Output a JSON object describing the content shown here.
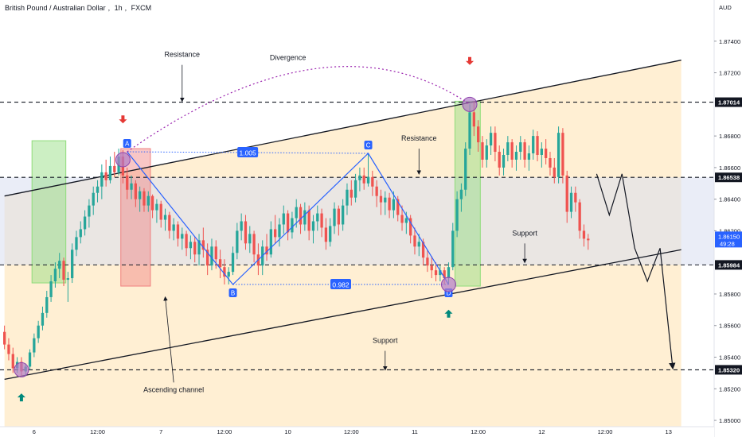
{
  "header": {
    "symbol_name": "British Pound / Australian Dollar",
    "interval": "1h",
    "exchange": "FXCM",
    "currency": "AUD"
  },
  "colors": {
    "up": "#26a69a",
    "down": "#ef5350",
    "channel_band": "#ffe9c4",
    "range_band": "#d8dff0",
    "green_box": "#8fdc7a",
    "red_box": "#f08080",
    "pattern_line": "#2962ff",
    "divergence": "#9c27b0",
    "arrow_down": "#e53935",
    "arrow_up": "#00897b",
    "axis_text": "#131722"
  },
  "chart_data": {
    "type": "candlestick",
    "title": "British Pound / Australian Dollar, 1h, FXCM",
    "ylim": [
      1.8496,
      1.8755
    ],
    "y_ticks": [
      "1.87400",
      "1.87200",
      "1.86800",
      "1.86600",
      "1.86400",
      "1.86200",
      "1.85800",
      "1.85600",
      "1.85400",
      "1.85200",
      "1.85000"
    ],
    "y_tick_values": [
      1.874,
      1.872,
      1.868,
      1.866,
      1.864,
      1.862,
      1.858,
      1.856,
      1.854,
      1.852,
      1.85
    ],
    "x_ticks": [
      "6",
      "12:00",
      "7",
      "12:00",
      "10",
      "12:00",
      "11",
      "12:00",
      "12",
      "12:00",
      "13"
    ],
    "x_tick_index": [
      7,
      22,
      37,
      52,
      67,
      82,
      97,
      112,
      127,
      142,
      157
    ],
    "bar_count": 160,
    "horizontal_levels": [
      {
        "price": 1.87014,
        "label": "1.87014",
        "style": "dashed"
      },
      {
        "price": 1.86538,
        "label": "1.86538",
        "style": "dashed"
      },
      {
        "price": 1.85984,
        "label": "1.85984",
        "style": "dashed"
      },
      {
        "price": 1.8532,
        "label": "1.85320",
        "style": "dashed"
      }
    ],
    "last_price": {
      "value": "1.86150",
      "countdown": "49:28"
    },
    "channel": {
      "upper": [
        [
          0,
          1.8642
        ],
        [
          160,
          1.8728
        ]
      ],
      "lower": [
        [
          0,
          1.8526
        ],
        [
          160,
          1.8608
        ]
      ]
    },
    "zones": [
      {
        "kind": "green",
        "x": [
          7,
          14
        ],
        "y": [
          1.8587,
          1.8677
        ]
      },
      {
        "kind": "red",
        "x": [
          28,
          34
        ],
        "y": [
          1.8585,
          1.8672
        ]
      },
      {
        "kind": "green",
        "x": [
          107,
          112
        ],
        "y": [
          1.8585,
          1.8702
        ]
      }
    ],
    "harmonic": {
      "points": [
        {
          "label": "A",
          "i": 29,
          "p": 1.867
        },
        {
          "label": "B",
          "i": 54,
          "p": 1.8586
        },
        {
          "label": "C",
          "i": 86,
          "p": 1.8669
        },
        {
          "label": "D",
          "i": 105,
          "p": 1.8586
        }
      ],
      "ratios": [
        {
          "label": "1.005",
          "from": "A",
          "to": "C"
        },
        {
          "label": "0.982",
          "from": "B",
          "to": "D"
        }
      ]
    },
    "projection": [
      [
        140,
        1.8656
      ],
      [
        143,
        1.863
      ],
      [
        146,
        1.8656
      ],
      [
        149,
        1.8609
      ],
      [
        152,
        1.8588
      ],
      [
        155,
        1.8609
      ],
      [
        158,
        1.8533
      ]
    ],
    "annotations": [
      {
        "text": "Resistance",
        "i": 42,
        "p": 1.873
      },
      {
        "text": "Divergence",
        "i": 67,
        "p": 1.8728
      },
      {
        "text": "Resistance",
        "i": 98,
        "p": 1.8677
      },
      {
        "text": "Support",
        "i": 123,
        "p": 1.8617
      },
      {
        "text": "Support",
        "i": 90,
        "p": 1.8549
      },
      {
        "text": "Ascending channel",
        "i": 40,
        "p": 1.8518
      }
    ],
    "candles_ohlc": [
      [
        1.8556,
        1.856,
        1.8545,
        1.8548
      ],
      [
        1.8548,
        1.8552,
        1.8538,
        1.8542
      ],
      [
        1.8542,
        1.8546,
        1.853,
        1.8533
      ],
      [
        1.8533,
        1.854,
        1.853,
        1.8537
      ],
      [
        1.8537,
        1.854,
        1.8528,
        1.8531
      ],
      [
        1.8531,
        1.8536,
        1.8528,
        1.8534
      ],
      [
        1.8534,
        1.8545,
        1.8532,
        1.8543
      ],
      [
        1.8543,
        1.8555,
        1.854,
        1.8552
      ],
      [
        1.8552,
        1.8563,
        1.8549,
        1.856
      ],
      [
        1.856,
        1.8572,
        1.8557,
        1.8568
      ],
      [
        1.8568,
        1.8582,
        1.8565,
        1.8578
      ],
      [
        1.8578,
        1.8592,
        1.8575,
        1.8588
      ],
      [
        1.8588,
        1.86,
        1.8584,
        1.8596
      ],
      [
        1.8596,
        1.8606,
        1.859,
        1.8601
      ],
      [
        1.8601,
        1.8603,
        1.8585,
        1.8589
      ],
      [
        1.8589,
        1.8594,
        1.8575,
        1.859
      ],
      [
        1.859,
        1.8612,
        1.8587,
        1.8608
      ],
      [
        1.8608,
        1.862,
        1.8604,
        1.8616
      ],
      [
        1.8616,
        1.8626,
        1.8612,
        1.8621
      ],
      [
        1.8621,
        1.8633,
        1.8617,
        1.8629
      ],
      [
        1.8629,
        1.864,
        1.8622,
        1.8636
      ],
      [
        1.8636,
        1.8648,
        1.863,
        1.8644
      ],
      [
        1.8644,
        1.8652,
        1.8638,
        1.8648
      ],
      [
        1.8648,
        1.8662,
        1.864,
        1.8657
      ],
      [
        1.8657,
        1.8665,
        1.8648,
        1.8652
      ],
      [
        1.8652,
        1.8667,
        1.865,
        1.8661
      ],
      [
        1.8661,
        1.867,
        1.8654,
        1.8657
      ],
      [
        1.8657,
        1.8672,
        1.8655,
        1.8667
      ],
      [
        1.8667,
        1.8671,
        1.865,
        1.8655
      ],
      [
        1.8655,
        1.866,
        1.864,
        1.8646
      ],
      [
        1.8646,
        1.8655,
        1.864,
        1.865
      ],
      [
        1.865,
        1.8652,
        1.8635,
        1.864
      ],
      [
        1.864,
        1.8648,
        1.8632,
        1.8645
      ],
      [
        1.8645,
        1.8647,
        1.8632,
        1.8636
      ],
      [
        1.8636,
        1.8645,
        1.8632,
        1.8642
      ],
      [
        1.8642,
        1.8643,
        1.8628,
        1.8633
      ],
      [
        1.8633,
        1.864,
        1.8625,
        1.8637
      ],
      [
        1.8637,
        1.8639,
        1.8622,
        1.8627
      ],
      [
        1.8627,
        1.8634,
        1.862,
        1.863
      ],
      [
        1.863,
        1.8632,
        1.8615,
        1.862
      ],
      [
        1.862,
        1.8628,
        1.8614,
        1.8624
      ],
      [
        1.8624,
        1.8626,
        1.861,
        1.8615
      ],
      [
        1.8615,
        1.8622,
        1.8608,
        1.8618
      ],
      [
        1.8618,
        1.862,
        1.8604,
        1.8609
      ],
      [
        1.8609,
        1.8617,
        1.8602,
        1.8613
      ],
      [
        1.8613,
        1.8616,
        1.86,
        1.8605
      ],
      [
        1.8605,
        1.8618,
        1.8598,
        1.8614
      ],
      [
        1.8614,
        1.8622,
        1.8603,
        1.8608
      ],
      [
        1.8608,
        1.8612,
        1.8592,
        1.8598
      ],
      [
        1.8598,
        1.8615,
        1.8595,
        1.861
      ],
      [
        1.861,
        1.8614,
        1.8596,
        1.8602
      ],
      [
        1.8602,
        1.8608,
        1.859,
        1.8597
      ],
      [
        1.8597,
        1.8602,
        1.8586,
        1.8591
      ],
      [
        1.8591,
        1.8597,
        1.8586,
        1.8594
      ],
      [
        1.8594,
        1.861,
        1.8592,
        1.8606
      ],
      [
        1.8606,
        1.8625,
        1.8602,
        1.862
      ],
      [
        1.862,
        1.8631,
        1.8614,
        1.8626
      ],
      [
        1.8626,
        1.863,
        1.8608,
        1.8612
      ],
      [
        1.8612,
        1.8623,
        1.8606,
        1.8618
      ],
      [
        1.8618,
        1.862,
        1.86,
        1.8605
      ],
      [
        1.8605,
        1.8612,
        1.8592,
        1.8598
      ],
      [
        1.8598,
        1.8614,
        1.8592,
        1.861
      ],
      [
        1.861,
        1.8618,
        1.8601,
        1.8605
      ],
      [
        1.8605,
        1.8626,
        1.8603,
        1.8621
      ],
      [
        1.8621,
        1.863,
        1.8612,
        1.8616
      ],
      [
        1.8616,
        1.8628,
        1.861,
        1.8624
      ],
      [
        1.8624,
        1.8636,
        1.8618,
        1.8631
      ],
      [
        1.8631,
        1.8633,
        1.8614,
        1.8619
      ],
      [
        1.8619,
        1.8632,
        1.8615,
        1.8628
      ],
      [
        1.8628,
        1.864,
        1.8622,
        1.8635
      ],
      [
        1.8635,
        1.8637,
        1.8618,
        1.8624
      ],
      [
        1.8624,
        1.8638,
        1.862,
        1.8633
      ],
      [
        1.8633,
        1.8636,
        1.8614,
        1.862
      ],
      [
        1.862,
        1.863,
        1.8612,
        1.8626
      ],
      [
        1.8626,
        1.8636,
        1.862,
        1.8631
      ],
      [
        1.8631,
        1.8634,
        1.8616,
        1.8622
      ],
      [
        1.8622,
        1.8628,
        1.8608,
        1.8613
      ],
      [
        1.8613,
        1.8628,
        1.861,
        1.8623
      ],
      [
        1.8623,
        1.8638,
        1.8618,
        1.8634
      ],
      [
        1.8634,
        1.8636,
        1.8617,
        1.8624
      ],
      [
        1.8624,
        1.864,
        1.862,
        1.8636
      ],
      [
        1.8636,
        1.865,
        1.863,
        1.8646
      ],
      [
        1.8646,
        1.8652,
        1.8636,
        1.8641
      ],
      [
        1.8641,
        1.8656,
        1.8638,
        1.8652
      ],
      [
        1.8652,
        1.866,
        1.8645,
        1.8655
      ],
      [
        1.8655,
        1.866,
        1.8646,
        1.865
      ],
      [
        1.865,
        1.8669,
        1.8648,
        1.8654
      ],
      [
        1.8654,
        1.8658,
        1.8642,
        1.8648
      ],
      [
        1.8648,
        1.8652,
        1.8635,
        1.8642
      ],
      [
        1.8642,
        1.8646,
        1.863,
        1.8638
      ],
      [
        1.8638,
        1.8645,
        1.863,
        1.8641
      ],
      [
        1.8641,
        1.8644,
        1.8628,
        1.8633
      ],
      [
        1.8633,
        1.8645,
        1.8628,
        1.864
      ],
      [
        1.864,
        1.8642,
        1.8626,
        1.863
      ],
      [
        1.863,
        1.8636,
        1.862,
        1.8625
      ],
      [
        1.8625,
        1.8632,
        1.8618,
        1.8628
      ],
      [
        1.8628,
        1.863,
        1.8612,
        1.8617
      ],
      [
        1.8617,
        1.8622,
        1.8605,
        1.861
      ],
      [
        1.861,
        1.8618,
        1.8604,
        1.8613
      ],
      [
        1.8613,
        1.8615,
        1.8598,
        1.8603
      ],
      [
        1.8603,
        1.8608,
        1.8594,
        1.8598
      ],
      [
        1.8598,
        1.8604,
        1.859,
        1.8595
      ],
      [
        1.8595,
        1.86,
        1.8588,
        1.8592
      ],
      [
        1.8592,
        1.8598,
        1.8588,
        1.8595
      ],
      [
        1.8595,
        1.8597,
        1.8586,
        1.859
      ],
      [
        1.859,
        1.86,
        1.8586,
        1.8597
      ],
      [
        1.8597,
        1.8625,
        1.8595,
        1.862
      ],
      [
        1.862,
        1.8645,
        1.8616,
        1.864
      ],
      [
        1.864,
        1.865,
        1.8632,
        1.8646
      ],
      [
        1.8646,
        1.8676,
        1.8642,
        1.8672
      ],
      [
        1.8672,
        1.87,
        1.8668,
        1.8695
      ],
      [
        1.8695,
        1.8702,
        1.868,
        1.8686
      ],
      [
        1.8686,
        1.869,
        1.867,
        1.8676
      ],
      [
        1.8676,
        1.868,
        1.866,
        1.8665
      ],
      [
        1.8665,
        1.8678,
        1.866,
        1.8674
      ],
      [
        1.8674,
        1.8686,
        1.8668,
        1.8682
      ],
      [
        1.8682,
        1.8686,
        1.8664,
        1.867
      ],
      [
        1.867,
        1.8674,
        1.8655,
        1.866
      ],
      [
        1.866,
        1.8672,
        1.8655,
        1.8668
      ],
      [
        1.8668,
        1.868,
        1.8664,
        1.8676
      ],
      [
        1.8676,
        1.8678,
        1.866,
        1.8665
      ],
      [
        1.8665,
        1.8674,
        1.8658,
        1.867
      ],
      [
        1.867,
        1.868,
        1.8665,
        1.8676
      ],
      [
        1.8676,
        1.8678,
        1.866,
        1.8665
      ],
      [
        1.8665,
        1.8674,
        1.8658,
        1.8669
      ],
      [
        1.8669,
        1.8684,
        1.8665,
        1.868
      ],
      [
        1.868,
        1.8683,
        1.8664,
        1.8668
      ],
      [
        1.8668,
        1.8676,
        1.866,
        1.8672
      ],
      [
        1.8672,
        1.8678,
        1.8662,
        1.8666
      ],
      [
        1.8666,
        1.867,
        1.8655,
        1.866
      ],
      [
        1.866,
        1.8666,
        1.865,
        1.8654
      ],
      [
        1.8654,
        1.8686,
        1.865,
        1.8682
      ],
      [
        1.8682,
        1.8685,
        1.865,
        1.8655
      ],
      [
        1.8655,
        1.8658,
        1.8625,
        1.8632
      ],
      [
        1.8632,
        1.8648,
        1.8628,
        1.8644
      ],
      [
        1.8644,
        1.8648,
        1.8632,
        1.8638
      ],
      [
        1.8638,
        1.864,
        1.8615,
        1.862
      ],
      [
        1.862,
        1.8624,
        1.861,
        1.8615
      ],
      [
        1.8615,
        1.8618,
        1.8608,
        1.8614
      ]
    ]
  }
}
